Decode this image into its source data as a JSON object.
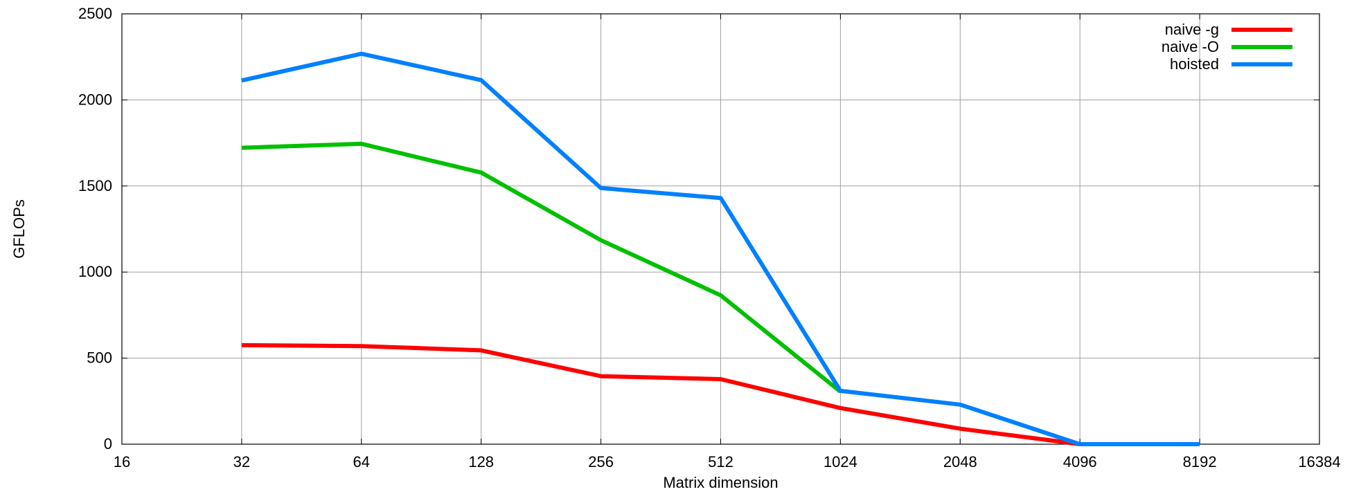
{
  "chart_data": {
    "type": "line",
    "x_scale": "log2",
    "x_ticks": [
      16,
      32,
      64,
      128,
      256,
      512,
      1024,
      2048,
      4096,
      8192,
      16384
    ],
    "x_tick_labels": [
      "16",
      "32",
      "64",
      "128",
      "256",
      "512",
      "1024",
      "2048",
      "4096",
      "8192",
      "16384"
    ],
    "xlim": [
      16,
      16384
    ],
    "y_ticks": [
      0,
      500,
      1000,
      1500,
      2000,
      2500
    ],
    "y_tick_labels": [
      "0",
      "500",
      "1000",
      "1500",
      "2000",
      "2500"
    ],
    "ylim": [
      0,
      2500
    ],
    "xlabel": "Matrix dimension",
    "ylabel": "GFLOPs",
    "grid": true,
    "legend_position": "top-right",
    "series": [
      {
        "name": "naive -g",
        "color": "#ff0000",
        "x": [
          32,
          64,
          128,
          256,
          512,
          1024,
          2048,
          4096
        ],
        "values": [
          575,
          570,
          545,
          395,
          378,
          210,
          90,
          0
        ]
      },
      {
        "name": "naive -O",
        "color": "#00c000",
        "x": [
          32,
          64,
          128,
          256,
          512,
          1024
        ],
        "values": [
          1722,
          1745,
          1578,
          1185,
          865,
          305
        ]
      },
      {
        "name": "hoisted",
        "color": "#0080ff",
        "x": [
          32,
          64,
          128,
          256,
          512,
          1024,
          2048,
          4096,
          8192
        ],
        "values": [
          2113,
          2268,
          2115,
          1488,
          1430,
          310,
          230,
          0,
          0
        ]
      }
    ]
  }
}
